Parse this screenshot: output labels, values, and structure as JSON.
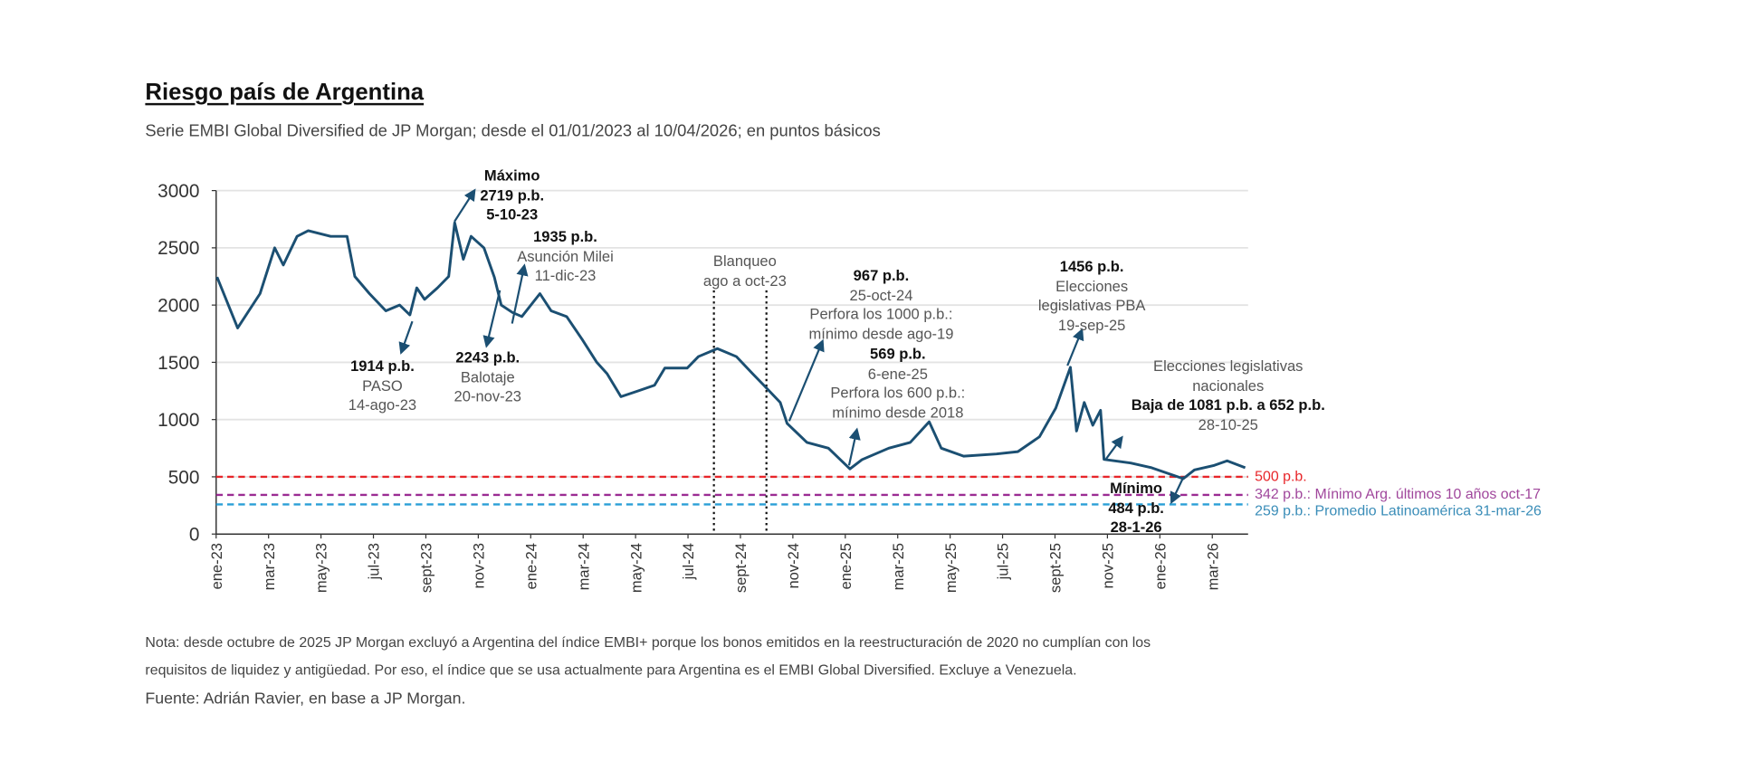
{
  "title": "Riesgo país de Argentina",
  "subtitle": "Serie EMBI Global Diversified de JP Morgan; desde el 01/01/2023 al 10/04/2026; en puntos básicos",
  "note_line1": "Nota: desde octubre de 2025 JP Morgan excluyó a Argentina del índice EMBI+ porque los bonos emitidos en la reestructuración de 2020 no cumplían con los",
  "note_line2": "requisitos de liquidez y antigüedad. Por eso, el índice que se usa actualmente para Argentina es el EMBI Global Diversified. Excluye a Venezuela.",
  "source": "Fuente: Adrián Ravier, en base a JP Morgan.",
  "colors": {
    "line": "#1b4f72",
    "ref_500": "#e8262a",
    "ref_342": "#9b2c93",
    "ref_259": "#2a9fd6",
    "grid": "#e3e3e3"
  },
  "annotations": {
    "maximo": {
      "l1": "Máximo",
      "l2": "2719 p.b.",
      "l3": "5-10-23"
    },
    "milei": {
      "l1": "1935 p.b.",
      "l2": "Asunción Milei",
      "l3": "11-dic-23"
    },
    "paso": {
      "l1": "1914 p.b.",
      "l2": "PASO",
      "l3": "14-ago-23"
    },
    "balotaje": {
      "l1": "2243 p.b.",
      "l2": "Balotaje",
      "l3": "20-nov-23"
    },
    "blanqueo": {
      "l1": "Blanqueo",
      "l2": "ago a oct-23"
    },
    "a967": {
      "l1": "967 p.b.",
      "l2": "25-oct-24",
      "l3": "Perfora los 1000 p.b.:",
      "l4": "mínimo desde ago-19"
    },
    "a569": {
      "l1": "569 p.b.",
      "l2": "6-ene-25",
      "l3": "Perfora los 600 p.b.:",
      "l4": "mínimo desde 2018"
    },
    "a1456": {
      "l1": "1456 p.b.",
      "l2": "Elecciones",
      "l3": "legislativas PBA",
      "l4": "19-sep-25"
    },
    "nacionales": {
      "l1": "Elecciones legislativas",
      "l2": "nacionales",
      "l3": "Baja de 1081 p.b. a 652 p.b.",
      "l4": "28-10-25"
    },
    "minimo": {
      "l1": "Mínimo",
      "l2": "484 p.b.",
      "l3": "28-1-26"
    }
  },
  "chart_data": {
    "type": "line",
    "title": "Riesgo país de Argentina",
    "xlabel": "",
    "ylabel": "",
    "ylim": [
      0,
      3000
    ],
    "yticks": [
      0,
      500,
      1000,
      1500,
      2000,
      2500,
      3000
    ],
    "xlim": [
      "2023-01-01",
      "2026-04-12"
    ],
    "xtick_labels": [
      "ene-23",
      "mar-23",
      "may-23",
      "jul-23",
      "sept-23",
      "nov-23",
      "ene-24",
      "mar-24",
      "may-24",
      "jul-24",
      "sept-24",
      "nov-24",
      "ene-25",
      "mar-25",
      "may-25",
      "jul-25",
      "sept-25",
      "nov-25",
      "ene-26",
      "mar-26"
    ],
    "grid": true,
    "series": [
      {
        "points": [
          [
            "2023-01-02",
            2245
          ],
          [
            "2023-01-26",
            1800
          ],
          [
            "2023-02-21",
            2100
          ],
          [
            "2023-03-10",
            2500
          ],
          [
            "2023-03-20",
            2350
          ],
          [
            "2023-04-05",
            2600
          ],
          [
            "2023-04-18",
            2650
          ],
          [
            "2023-05-14",
            2600
          ],
          [
            "2023-06-02",
            2600
          ],
          [
            "2023-06-11",
            2250
          ],
          [
            "2023-06-28",
            2100
          ],
          [
            "2023-07-17",
            1950
          ],
          [
            "2023-08-02",
            2000
          ],
          [
            "2023-08-14",
            1914
          ],
          [
            "2023-08-22",
            2150
          ],
          [
            "2023-08-31",
            2050
          ],
          [
            "2023-09-15",
            2150
          ],
          [
            "2023-09-28",
            2250
          ],
          [
            "2023-10-05",
            2719
          ],
          [
            "2023-10-15",
            2400
          ],
          [
            "2023-10-24",
            2600
          ],
          [
            "2023-11-08",
            2500
          ],
          [
            "2023-11-20",
            2243
          ],
          [
            "2023-11-28",
            2000
          ],
          [
            "2023-12-11",
            1935
          ],
          [
            "2023-12-22",
            1900
          ],
          [
            "2024-01-12",
            2100
          ],
          [
            "2024-01-25",
            1950
          ],
          [
            "2024-02-12",
            1900
          ],
          [
            "2024-03-01",
            1700
          ],
          [
            "2024-03-18",
            1500
          ],
          [
            "2024-03-30",
            1400
          ],
          [
            "2024-04-15",
            1200
          ],
          [
            "2024-05-05",
            1250
          ],
          [
            "2024-05-24",
            1300
          ],
          [
            "2024-06-05",
            1450
          ],
          [
            "2024-07-01",
            1450
          ],
          [
            "2024-07-14",
            1550
          ],
          [
            "2024-08-05",
            1620
          ],
          [
            "2024-08-27",
            1550
          ],
          [
            "2024-09-15",
            1400
          ],
          [
            "2024-09-28",
            1300
          ],
          [
            "2024-10-17",
            1150
          ],
          [
            "2024-10-25",
            967
          ],
          [
            "2024-11-17",
            800
          ],
          [
            "2024-12-12",
            750
          ],
          [
            "2025-01-06",
            569
          ],
          [
            "2025-01-20",
            650
          ],
          [
            "2025-02-20",
            750
          ],
          [
            "2025-03-17",
            800
          ],
          [
            "2025-04-08",
            980
          ],
          [
            "2025-04-22",
            750
          ],
          [
            "2025-05-18",
            680
          ],
          [
            "2025-06-25",
            700
          ],
          [
            "2025-07-20",
            720
          ],
          [
            "2025-08-14",
            850
          ],
          [
            "2025-09-02",
            1100
          ],
          [
            "2025-09-19",
            1456
          ],
          [
            "2025-09-26",
            900
          ],
          [
            "2025-10-05",
            1150
          ],
          [
            "2025-10-15",
            950
          ],
          [
            "2025-10-24",
            1081
          ],
          [
            "2025-10-28",
            652
          ],
          [
            "2025-11-28",
            620
          ],
          [
            "2025-12-22",
            580
          ],
          [
            "2026-01-28",
            484
          ],
          [
            "2026-02-10",
            560
          ],
          [
            "2026-03-05",
            600
          ],
          [
            "2026-03-20",
            640
          ],
          [
            "2026-04-10",
            580
          ]
        ]
      }
    ],
    "reference_lines": [
      {
        "value": 500,
        "label": "500 p.b.",
        "color": "#e8262a"
      },
      {
        "value": 342,
        "label": "342 p.b.: Mínimo Arg. últimos 10 años oct-17",
        "color": "#9b2c93"
      },
      {
        "value": 259,
        "label": "259 p.b.: Promedio Latinoamérica 31-mar-26",
        "color": "#2a9fd6"
      }
    ],
    "vertical_markers": [
      {
        "date": "2024-08-01"
      },
      {
        "date": "2024-10-01"
      }
    ]
  }
}
